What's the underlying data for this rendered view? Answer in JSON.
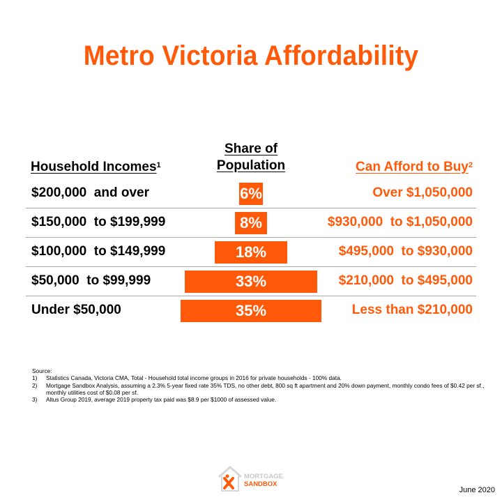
{
  "title": "Metro Victoria Affordability",
  "headers": {
    "income": "Household Incomes",
    "income_sup": "1",
    "share_line1": "Share of",
    "share_line2": "Population",
    "afford": "Can Afford to Buy",
    "afford_sup": "2"
  },
  "colors": {
    "accent": "#ff5a0a",
    "separator": "#a8a8a8"
  },
  "chart_data": {
    "type": "bar",
    "orientation": "horizontal-centered",
    "categories": [
      "$200,000  and over",
      "$150,000  to $199,999",
      "$100,000  to $149,999",
      "$50,000  to $99,999",
      "Under $50,000"
    ],
    "values": [
      6,
      8,
      18,
      33,
      35
    ],
    "value_labels": [
      "6%",
      "8%",
      "18%",
      "33%",
      "35%"
    ],
    "afford": [
      "Over $1,050,000",
      "$930,000  to $1,050,000",
      "$495,000  to $930,000",
      "$210,000  to $495,000",
      "Less than $210,000"
    ],
    "unit": "%"
  },
  "notes": {
    "label": "Source:",
    "items": [
      {
        "num": "1)",
        "text": "Statistics Canada, Victoria CMA, Total - Household total income groups in 2016 for private households - 100% data."
      },
      {
        "num": "2)",
        "text": "Mortgage Sandbox Analysis, assuming a 2.3% 5-year fixed rate 35% TDS, no other debt, 800 sq ft apartment and 20% down payment, monthly condo fees of $0.42 per sf., monthly utilities cost of $0.08 per sf."
      },
      {
        "num": "3)",
        "text": "Altus Group 2019, average 2019 property tax paid was $8.9 per $1000 of assessed value."
      }
    ]
  },
  "logo": {
    "line1": "MORTGAGE",
    "line2": "SANDBOX"
  },
  "date": "June 2020"
}
